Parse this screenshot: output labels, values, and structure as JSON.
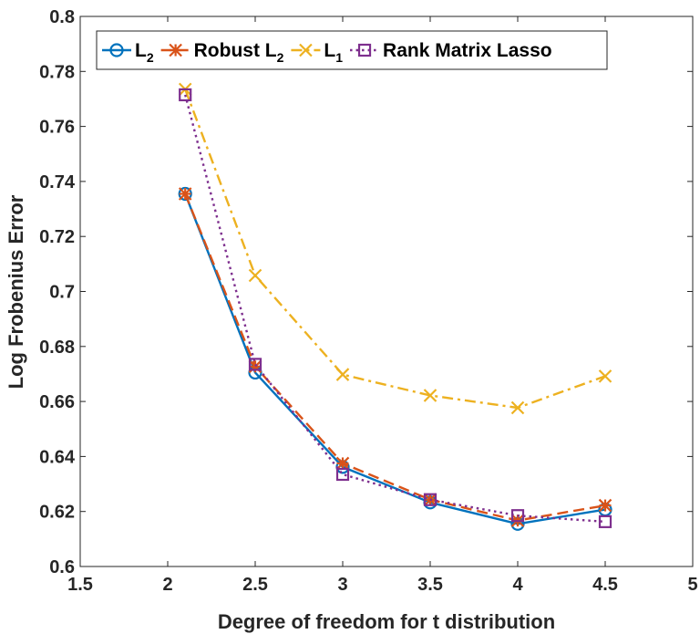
{
  "chart_data": {
    "type": "line",
    "title": "",
    "xlabel": "Degree of freedom for t distribution",
    "ylabel": "Log Frobenius Error",
    "xlim": [
      1.5,
      5
    ],
    "ylim": [
      0.6,
      0.8
    ],
    "xticks": [
      1.5,
      2,
      2.5,
      3,
      3.5,
      4,
      4.5,
      5
    ],
    "yticks": [
      0.6,
      0.62,
      0.64,
      0.66,
      0.68,
      0.7,
      0.72,
      0.74,
      0.76,
      0.78,
      0.8
    ],
    "xtick_labels": [
      "1.5",
      "2",
      "2.5",
      "3",
      "3.5",
      "4",
      "4.5",
      "5"
    ],
    "ytick_labels": [
      "0.6",
      "0.62",
      "0.64",
      "0.66",
      "0.68",
      "0.7",
      "0.72",
      "0.74",
      "0.76",
      "0.78",
      "0.8"
    ],
    "grid": false,
    "legend_position": "top",
    "x": [
      2.1,
      2.5,
      3,
      3.5,
      4,
      4.5
    ],
    "series": [
      {
        "name": "L2",
        "name_base": "L",
        "name_sub": "2",
        "color": "#0072BD",
        "dash": "solid",
        "marker": "circle",
        "values": [
          0.7355,
          0.6705,
          0.6362,
          0.6233,
          0.6155,
          0.6207
        ]
      },
      {
        "name": "Robust L2",
        "name_base": "Robust L",
        "name_sub": "2",
        "color": "#D95319",
        "dash": "dashed",
        "marker": "asterisk",
        "values": [
          0.7355,
          0.6727,
          0.6375,
          0.6243,
          0.6167,
          0.6222
        ]
      },
      {
        "name": "L1",
        "name_base": "L",
        "name_sub": "1",
        "color": "#EDB120",
        "dash": "dashdot",
        "marker": "x",
        "values": [
          0.7735,
          0.7058,
          0.6698,
          0.6622,
          0.6577,
          0.6692
        ]
      },
      {
        "name": "Rank Matrix Lasso",
        "name_base": "Rank Matrix Lasso",
        "name_sub": "",
        "color": "#7E2F8E",
        "dash": "dotted",
        "marker": "square",
        "values": [
          0.7715,
          0.6735,
          0.6335,
          0.6243,
          0.6185,
          0.6163
        ]
      }
    ]
  }
}
